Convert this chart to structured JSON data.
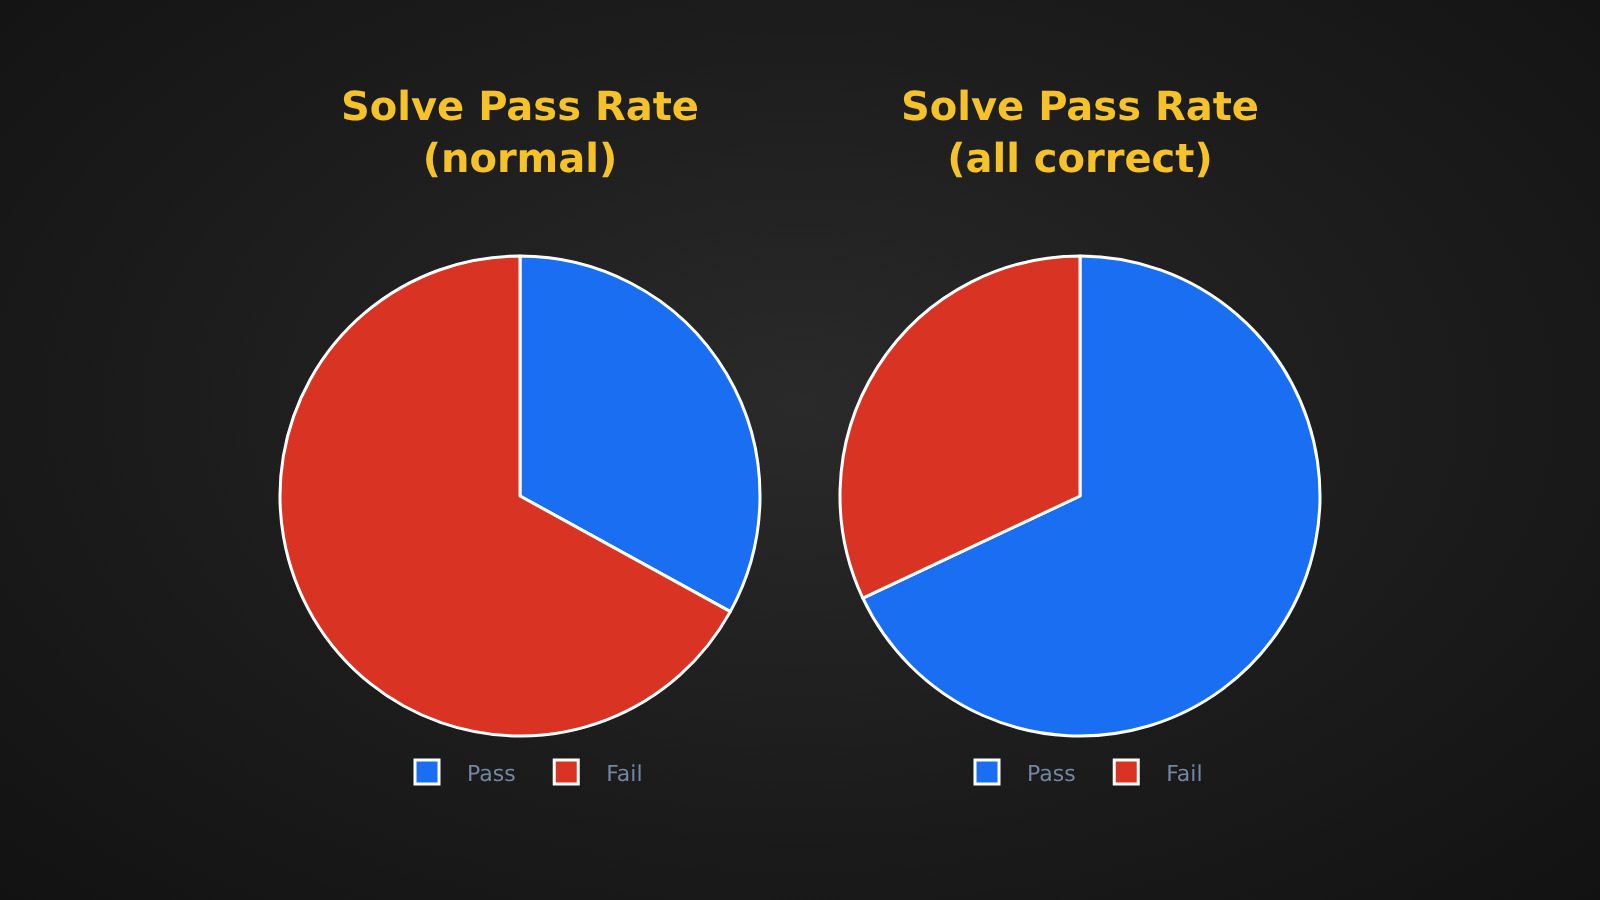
{
  "chart_data": [
    {
      "type": "pie",
      "title": "Solve Pass Rate\n(normal)",
      "categories": [
        "Pass",
        "Fail"
      ],
      "values": [
        33,
        67
      ],
      "colors": [
        "#1a6ef2",
        "#d83323"
      ],
      "legend": "bottom"
    },
    {
      "type": "pie",
      "title": "Solve Pass Rate\n(all correct)",
      "categories": [
        "Pass",
        "Fail"
      ],
      "values": [
        68,
        32
      ],
      "colors": [
        "#1a6ef2",
        "#d83323"
      ],
      "legend": "bottom"
    }
  ]
}
